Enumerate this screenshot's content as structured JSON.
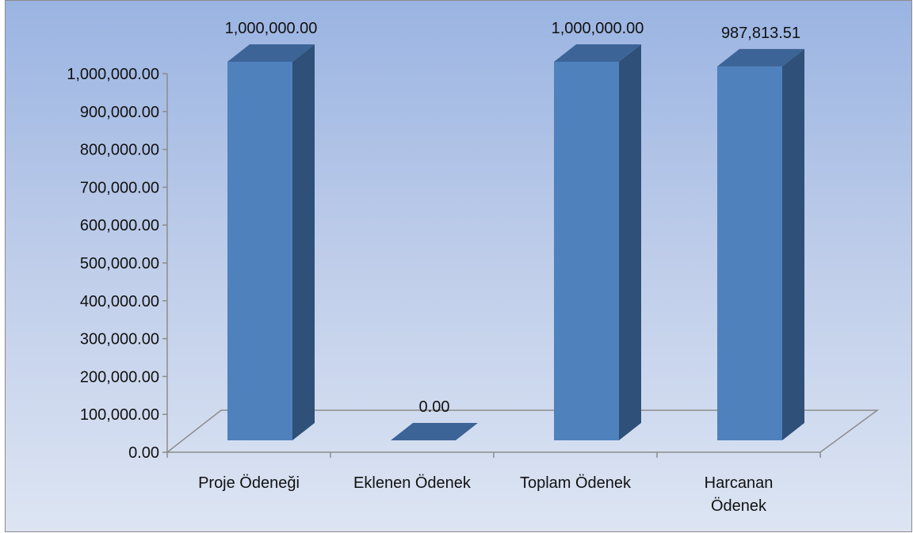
{
  "chart_data": {
    "type": "bar",
    "categories": [
      "Proje Ödeneği",
      "Eklenen Ödenek",
      "Toplam Ödenek",
      "Harcanan Ödenek"
    ],
    "category_lines": [
      [
        "Proje Ödeneği"
      ],
      [
        "Eklenen Ödenek"
      ],
      [
        "Toplam Ödenek"
      ],
      [
        "Harcanan",
        "Ödenek"
      ]
    ],
    "values": [
      1000000.0,
      0.0,
      1000000.0,
      987813.51
    ],
    "data_labels": [
      "1,000,000.00",
      "0.00",
      "1,000,000.00",
      "987,813.51"
    ],
    "ylim": [
      0,
      1000000
    ],
    "yticks": [
      "0.00",
      "100,000.00",
      "200,000.00",
      "300,000.00",
      "400,000.00",
      "500,000.00",
      "600,000.00",
      "700,000.00",
      "800,000.00",
      "900,000.00",
      "1,000,000.00"
    ],
    "title": "",
    "xlabel": "",
    "ylabel": "",
    "legend": "none",
    "grid": false,
    "style": "3d-column",
    "colors": {
      "bar_front": "#4f81bd",
      "bar_side": "#2f5078",
      "bar_top": "#3d6497",
      "axis": "#8c8c8c",
      "background_top": "#9ab4e2",
      "background_bottom": "#dde5f3"
    }
  }
}
